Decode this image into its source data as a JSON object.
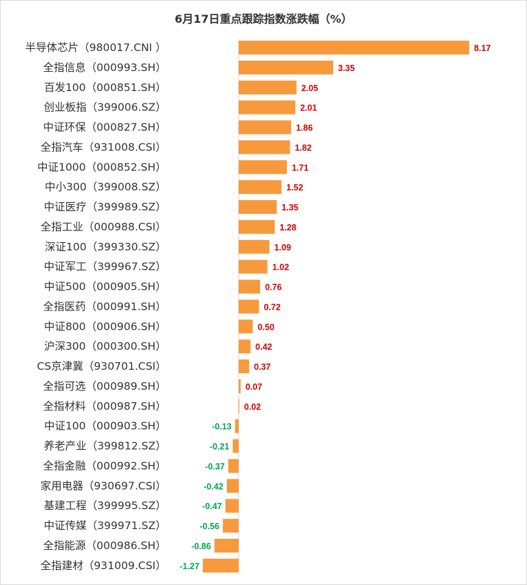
{
  "chart_data": {
    "type": "bar",
    "orientation": "horizontal",
    "title": "6月17日重点跟踪指数涨跌幅（%）",
    "xlabel": "",
    "ylabel": "",
    "grid": false,
    "legend": "none",
    "colors": {
      "bar": "#F79A3E",
      "positive_label": "#D40000",
      "negative_label": "#00A651",
      "axis": "#d0d0d0"
    },
    "categories": [
      "半导体芯片（980017.CNI ）",
      "全指信息（000993.SH）",
      "百发100（000851.SH）",
      "创业板指（399006.SZ）",
      "中证环保（000827.SH）",
      "全指汽车（931008.CSI）",
      "中证1000（000852.SH）",
      "中小300（399008.SZ）",
      "中证医疗（399989.SZ）",
      "全指工业（000988.CSI）",
      "深证100（399330.SZ）",
      "中证军工（399967.SZ）",
      "中证500（000905.SH）",
      "全指医药（000991.SH）",
      "中证800（000906.SH）",
      "沪深300（000300.SH）",
      "CS京津冀（930701.CSI）",
      "全指可选（000989.SH）",
      "全指材料（000987.SH）",
      "中证100（000903.SH）",
      "养老产业（399812.SZ）",
      "全指金融（000992.SH）",
      "家用电器（930697.CSI）",
      "基建工程（399995.SZ）",
      "中证传媒（399971.SZ）",
      "全指能源（000986.SH）",
      "全指建材（931009.CSI）"
    ],
    "values": [
      8.17,
      3.35,
      2.05,
      2.01,
      1.86,
      1.82,
      1.71,
      1.52,
      1.35,
      1.28,
      1.09,
      1.02,
      0.76,
      0.72,
      0.5,
      0.42,
      0.37,
      0.07,
      0.02,
      -0.13,
      -0.21,
      -0.37,
      -0.42,
      -0.47,
      -0.56,
      -0.86,
      -1.27
    ],
    "labels": [
      "8.17",
      "3.35",
      "2.05",
      "2.01",
      "1.86",
      "1.82",
      "1.71",
      "1.52",
      "1.35",
      "1.28",
      "1.09",
      "1.02",
      "0.76",
      "0.72",
      "0.50",
      "0.42",
      "0.37",
      "0.07",
      "0.02",
      "-0.13",
      "-0.21",
      "-0.37",
      "-0.42",
      "-0.47",
      "-0.56",
      "-0.86",
      "-1.27"
    ],
    "xlim": [
      -1.27,
      8.17
    ]
  }
}
